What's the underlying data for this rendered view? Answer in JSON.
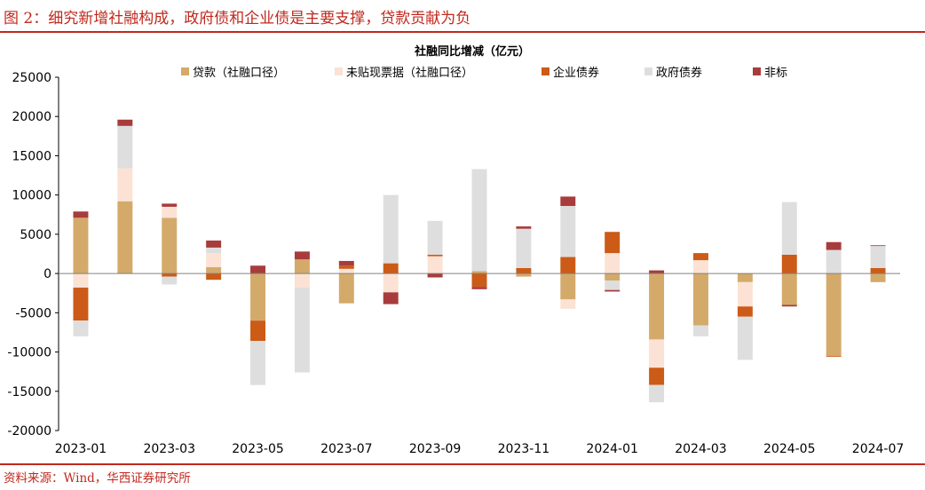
{
  "figure_title": "图 2：细究新增社融构成，政府债和企业债是主要支撑，贷款贡献为负",
  "source": "资料来源：Wind，华西证券研究所",
  "colors": {
    "loans": "#d4aa6a",
    "bills": "#fbe2d4",
    "corporate_bonds": "#cb5b17",
    "government_bonds": "#dedede",
    "non_standard": "#a83c3c",
    "accent": "#c0281d"
  },
  "chart_data": {
    "type": "bar",
    "stacked": true,
    "title": "社融同比增减（亿元）",
    "ylim": [
      -20000,
      25000
    ],
    "yticks": [
      25000,
      20000,
      15000,
      10000,
      5000,
      0,
      -5000,
      -10000,
      -15000,
      -20000
    ],
    "categories": [
      "2023-01",
      "2023-02",
      "2023-03",
      "2023-04",
      "2023-05",
      "2023-06",
      "2023-07",
      "2023-08",
      "2023-09",
      "2023-10",
      "2023-11",
      "2023-12",
      "2024-01",
      "2024-02",
      "2024-03",
      "2024-04",
      "2024-05",
      "2024-06",
      "2024-07"
    ],
    "xtick_labels": [
      "2023-01",
      "2023-03",
      "2023-05",
      "2023-07",
      "2023-09",
      "2023-11",
      "2024-01",
      "2024-03",
      "2024-05",
      "2024-07"
    ],
    "series": [
      {
        "name": "贷款（社融口径）",
        "key": "loans",
        "values": [
          7100,
          9200,
          7100,
          800,
          -6000,
          1800,
          -3800,
          0,
          0,
          300,
          -400,
          -3300,
          -900,
          -8400,
          -6600,
          -1100,
          -4000,
          -10500,
          -1100
        ]
      },
      {
        "name": "未贴现票据（社融口径）",
        "key": "bills",
        "values": [
          -1800,
          4200,
          1400,
          1800,
          0,
          -1800,
          600,
          -2400,
          2200,
          0,
          0,
          -1200,
          2600,
          -3600,
          1700,
          -3100,
          0,
          0,
          0
        ]
      },
      {
        "name": "企业债券",
        "key": "corporate_bonds",
        "values": [
          -4200,
          0,
          -400,
          -800,
          -2600,
          0,
          400,
          1300,
          200,
          -1700,
          700,
          2100,
          2700,
          -2200,
          900,
          -1300,
          2400,
          -100,
          700
        ]
      },
      {
        "name": "政府债券",
        "key": "government_bonds",
        "values": [
          -2000,
          5400,
          -1000,
          700,
          -5600,
          -10800,
          0,
          8700,
          4300,
          13000,
          5000,
          6500,
          -1200,
          -2200,
          -1400,
          -5500,
          6700,
          3000,
          2800
        ]
      },
      {
        "name": "非标",
        "key": "non_standard",
        "values": [
          800,
          800,
          400,
          900,
          1000,
          1000,
          600,
          -1500,
          -500,
          -300,
          300,
          1200,
          -200,
          400,
          0,
          0,
          -200,
          1000,
          100
        ]
      }
    ]
  }
}
